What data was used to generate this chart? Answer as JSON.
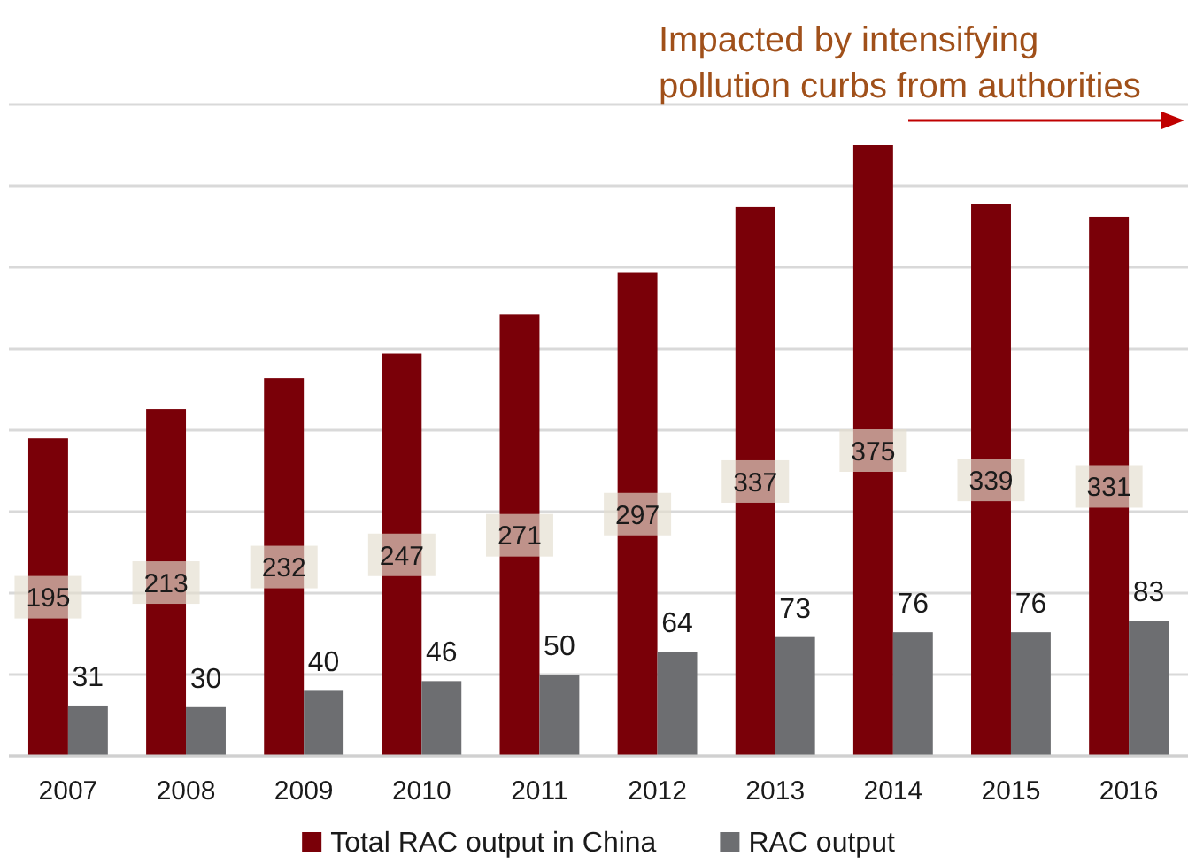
{
  "chart_data": {
    "type": "bar",
    "categories": [
      "2007",
      "2008",
      "2009",
      "2010",
      "2011",
      "2012",
      "2013",
      "2014",
      "2015",
      "2016"
    ],
    "series": [
      {
        "name": "Total RAC output in China",
        "color": "#7a0008",
        "values": [
          195,
          213,
          232,
          247,
          271,
          297,
          337,
          375,
          339,
          331
        ]
      },
      {
        "name": "RAC output",
        "color": "#6d6e71",
        "values": [
          31,
          30,
          40,
          46,
          50,
          64,
          73,
          76,
          76,
          83
        ]
      }
    ],
    "ylim": [
      0,
      400
    ],
    "yticks": [
      {
        "value": 0,
        "label": null
      },
      {
        "value": 50,
        "label": null
      },
      {
        "value": 100,
        "label": null
      },
      {
        "value": 150,
        "label": null
      },
      {
        "value": 200,
        "label": null
      },
      {
        "value": 250,
        "label": null
      },
      {
        "value": 300,
        "label": null
      },
      {
        "value": 350,
        "label": null
      },
      {
        "value": 400,
        "label": null
      }
    ],
    "grid": "y",
    "tick_labels": "x",
    "legend": "bottom",
    "data_labels": true,
    "annotations": [
      "Impacted by intensifying pollution curbs from authorities"
    ]
  }
}
